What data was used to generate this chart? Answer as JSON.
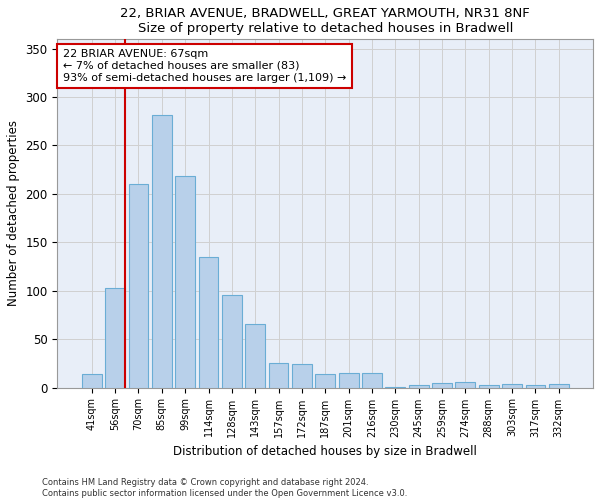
{
  "title1": "22, BRIAR AVENUE, BRADWELL, GREAT YARMOUTH, NR31 8NF",
  "title2": "Size of property relative to detached houses in Bradwell",
  "xlabel": "Distribution of detached houses by size in Bradwell",
  "ylabel": "Number of detached properties",
  "categories": [
    "41sqm",
    "56sqm",
    "70sqm",
    "85sqm",
    "99sqm",
    "114sqm",
    "128sqm",
    "143sqm",
    "157sqm",
    "172sqm",
    "187sqm",
    "201sqm",
    "216sqm",
    "230sqm",
    "245sqm",
    "259sqm",
    "274sqm",
    "288sqm",
    "303sqm",
    "317sqm",
    "332sqm"
  ],
  "values": [
    14,
    103,
    210,
    281,
    218,
    135,
    96,
    66,
    25,
    24,
    14,
    15,
    15,
    1,
    3,
    5,
    6,
    3,
    4,
    3,
    4
  ],
  "bar_color": "#b8d0ea",
  "bar_edge_color": "#6aadd5",
  "vline_color": "#cc0000",
  "annotation_text": "22 BRIAR AVENUE: 67sqm\n← 7% of detached houses are smaller (83)\n93% of semi-detached houses are larger (1,109) →",
  "annotation_box_color": "white",
  "annotation_box_edge_color": "#cc0000",
  "ylim": [
    0,
    360
  ],
  "yticks": [
    0,
    50,
    100,
    150,
    200,
    250,
    300,
    350
  ],
  "grid_color": "#d0d0d0",
  "background_color": "#e8eef8",
  "footer1": "Contains HM Land Registry data © Crown copyright and database right 2024.",
  "footer2": "Contains public sector information licensed under the Open Government Licence v3.0."
}
